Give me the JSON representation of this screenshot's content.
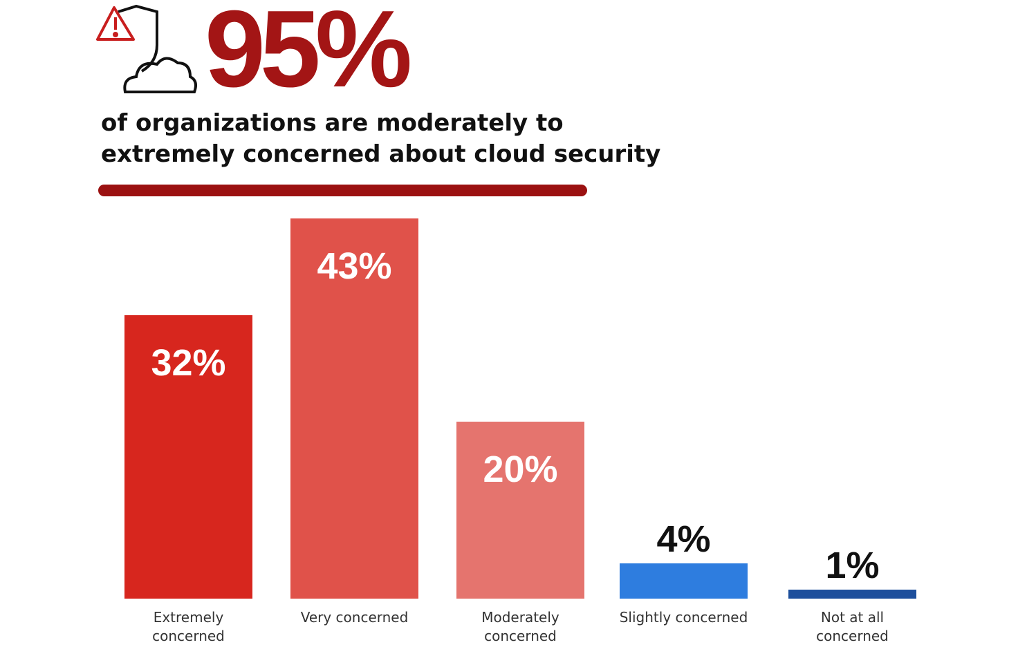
{
  "headline": "95%",
  "subtitle": "of organizations are moderately to extremely concerned about cloud security",
  "chart_data": {
    "type": "bar",
    "categories": [
      "Extremely concerned",
      "Very concerned",
      "Moderately concerned",
      "Slightly concerned",
      "Not at all concerned"
    ],
    "values": [
      32,
      43,
      20,
      4,
      1
    ],
    "value_labels": [
      "32%",
      "43%",
      "20%",
      "4%",
      "1%"
    ],
    "colors": [
      "#d7261e",
      "#e0524a",
      "#e5746e",
      "#2e7ddf",
      "#1d4f9c"
    ]
  }
}
